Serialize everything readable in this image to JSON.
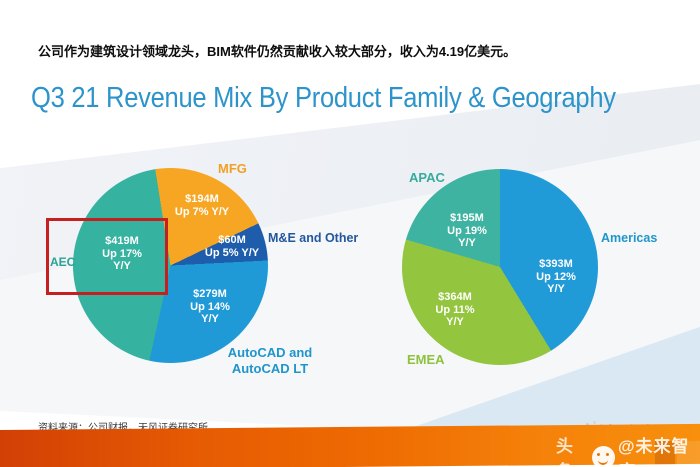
{
  "page": {
    "subtitle": "公司作为建筑设计领域龙头，BIM软件仍然贡献收入较大部分，收入为4.19亿美元。",
    "title": "Q3 21 Revenue Mix By Product Family & Geography",
    "source": "资料来源：公司财报，天风证券研究所"
  },
  "annotations": {
    "red_box_target": "AEC"
  },
  "watermark": {
    "ghost_text": "未来智库",
    "prefix": "头条",
    "logo": "vzkoo-smiley-logo",
    "handle": "@未来智库"
  },
  "colors": {
    "title_blue": "#2d94cb",
    "highlight_box_red": "#c51f1f",
    "footer_band_left": "#d24005",
    "footer_band_right": "#f8900c"
  },
  "chart_data": [
    {
      "type": "pie",
      "name": "Q3 21 Revenue Mix By Product Family",
      "value_unit": "$M",
      "slices": [
        {
          "label": "MFG",
          "value": 194,
          "growth_yoy": "Up 7% Y/Y",
          "display_lines": [
            "$194M",
            "Up 7% Y/Y"
          ],
          "color": "#f7a623",
          "label_color": "#f0a125"
        },
        {
          "label": "M&E and Other",
          "value": 60,
          "growth_yoy": "Up 5% Y/Y",
          "display_lines": [
            "$60M",
            "Up 5% Y/Y"
          ],
          "color": "#1d5dac",
          "label_color": "#23579e"
        },
        {
          "label": "AutoCAD and AutoCAD LT",
          "label_lines": [
            "AutoCAD and",
            "AutoCAD LT"
          ],
          "value": 279,
          "growth_yoy": "Up 14% Y/Y",
          "display_lines": [
            "$279M",
            "Up 14%",
            "Y/Y"
          ],
          "color": "#209ad7",
          "label_color": "#2095cc"
        },
        {
          "label": "AEC",
          "value": 419,
          "growth_yoy": "Up 17% Y/Y",
          "display_lines": [
            "$419M",
            "Up 17%",
            "Y/Y"
          ],
          "color": "#35b2a0",
          "label_color": "#2ba393"
        }
      ]
    },
    {
      "type": "pie",
      "name": "Q3 21 Revenue Mix By Geography",
      "value_unit": "$M",
      "slices": [
        {
          "label": "Americas",
          "value": 393,
          "growth_yoy": "Up 12% Y/Y",
          "display_lines": [
            "$393M",
            "Up 12%",
            "Y/Y"
          ],
          "color": "#209bd8",
          "label_color": "#2095cc"
        },
        {
          "label": "EMEA",
          "value": 364,
          "growth_yoy": "Up 11% Y/Y",
          "display_lines": [
            "$364M",
            "Up 11%",
            "Y/Y"
          ],
          "color": "#93c53e",
          "label_color": "#8ec23d"
        },
        {
          "label": "APAC",
          "value": 195,
          "growth_yoy": "Up 19% Y/Y",
          "display_lines": [
            "$195M",
            "Up 19%",
            "Y/Y"
          ],
          "color": "#3fb3a2",
          "label_color": "#36ab9d"
        }
      ]
    }
  ]
}
